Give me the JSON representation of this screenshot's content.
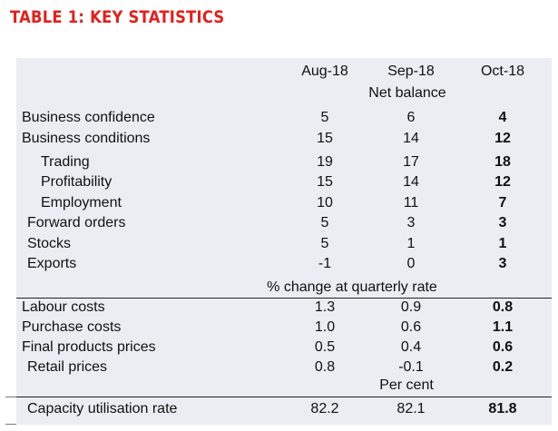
{
  "title": "TABLE 1: KEY STATISTICS",
  "columns": [
    "Aug-18",
    "Sep-18",
    "Oct-18"
  ],
  "sections": [
    {
      "header": "Net balance",
      "rows": [
        {
          "label": "Business confidence",
          "values": [
            "5",
            "6",
            "4"
          ]
        },
        {
          "label": "Business conditions",
          "values": [
            "15",
            "14",
            "12"
          ]
        },
        {
          "label": "Trading",
          "values": [
            "19",
            "17",
            "18"
          ]
        },
        {
          "label": "Profitability",
          "values": [
            "15",
            "14",
            "12"
          ]
        },
        {
          "label": "Employment",
          "values": [
            "10",
            "11",
            "7"
          ]
        },
        {
          "label": "Forward orders",
          "values": [
            "5",
            "3",
            "3"
          ]
        },
        {
          "label": "Stocks",
          "values": [
            "5",
            "1",
            "1"
          ]
        },
        {
          "label": "Exports",
          "values": [
            "-1",
            "0",
            "3"
          ]
        }
      ]
    },
    {
      "header": "% change at quarterly rate",
      "rows": [
        {
          "label": "Labour costs",
          "values": [
            "1.3",
            "0.9",
            "0.8"
          ]
        },
        {
          "label": "Purchase costs",
          "values": [
            "1.0",
            "0.6",
            "1.1"
          ]
        },
        {
          "label": "Final products prices",
          "values": [
            "0.5",
            "0.4",
            "0.6"
          ]
        },
        {
          "label": "Retail prices",
          "values": [
            "0.8",
            "-0.1",
            "0.2"
          ]
        }
      ]
    },
    {
      "header": "Per cent",
      "rows": [
        {
          "label": "Capacity utilisation rate",
          "values": [
            "82.2",
            "82.1",
            "81.8"
          ]
        }
      ]
    }
  ],
  "colors": {
    "title": "#e4201b",
    "panel": "#ecedf3"
  }
}
